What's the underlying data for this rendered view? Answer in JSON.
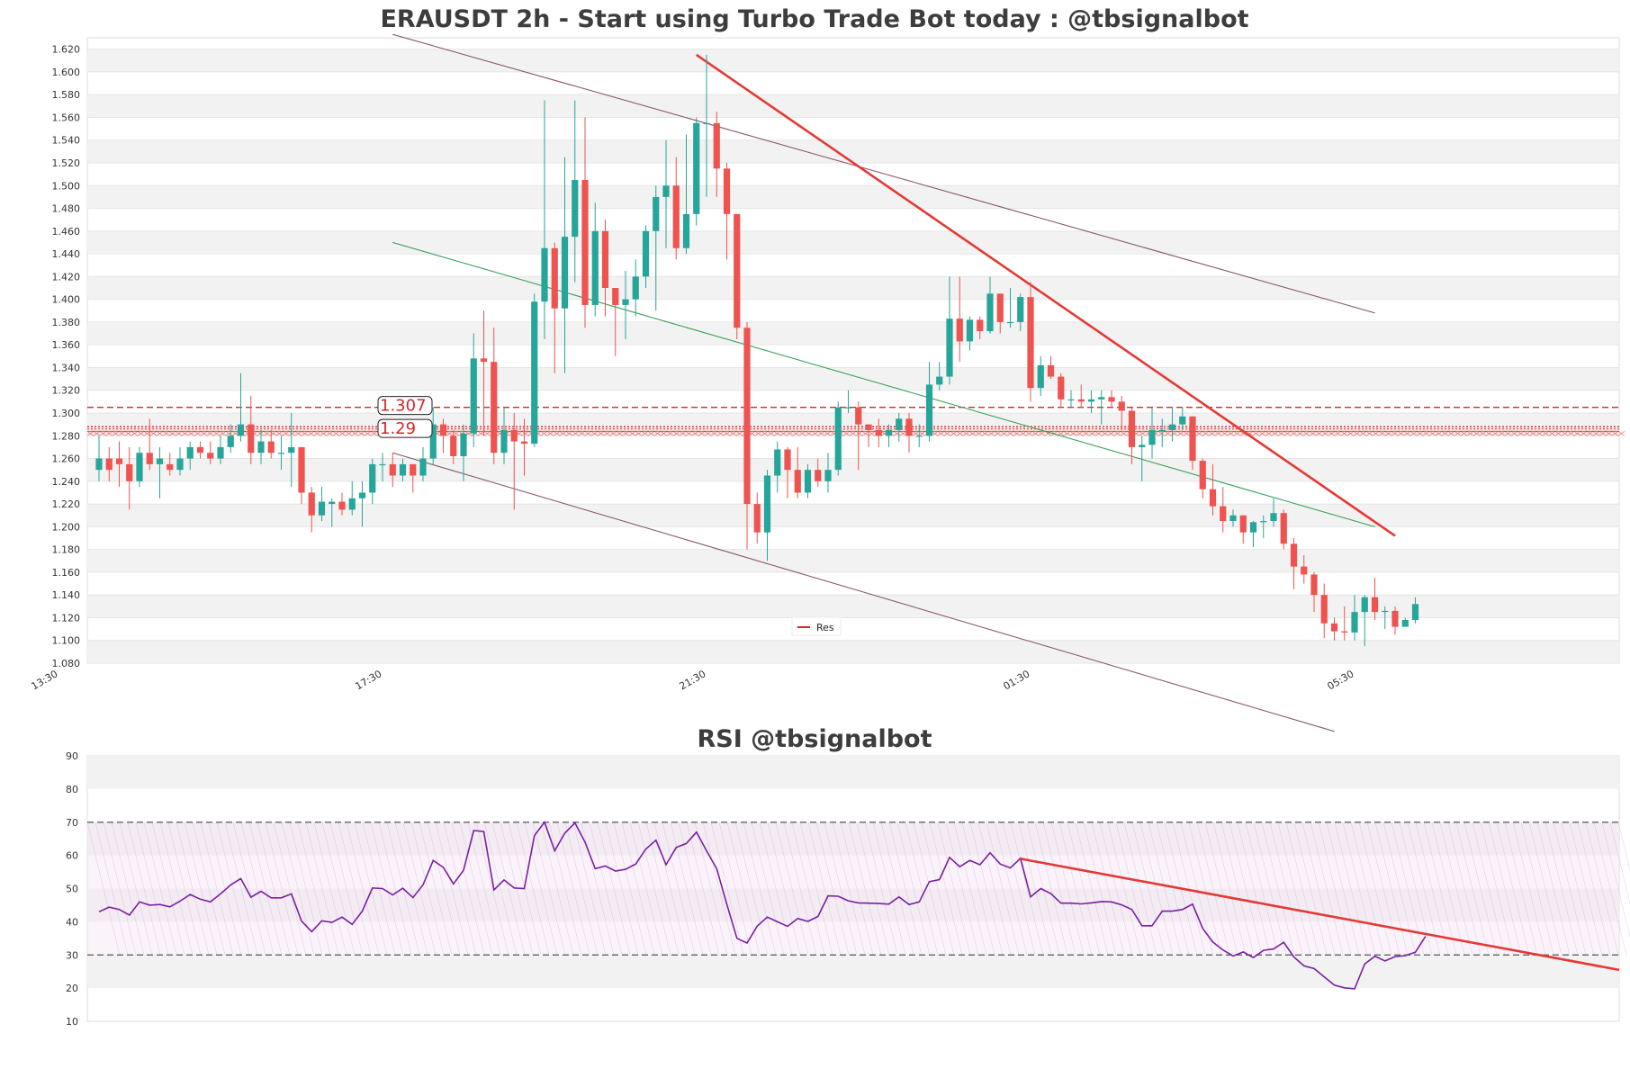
{
  "title": "ERAUSDT 2h - Start using Turbo Trade Bot today : @tbsignalbot",
  "rsi_title": "RSI @tbsignalbot",
  "colors": {
    "up": "#26a69a",
    "down": "#ef5350",
    "resistance": "#d62728",
    "channel": "#8b5a6b",
    "midline": "#3aa35a",
    "rsi": "#7b1fa2",
    "trend": "#e53935"
  },
  "chart_data": [
    {
      "type": "candlestick",
      "ylim": [
        1.08,
        1.63
      ],
      "yticks": [
        "1.080",
        "1.100",
        "1.120",
        "1.140",
        "1.160",
        "1.180",
        "1.200",
        "1.220",
        "1.240",
        "1.260",
        "1.280",
        "1.300",
        "1.320",
        "1.340",
        "1.360",
        "1.380",
        "1.400",
        "1.420",
        "1.440",
        "1.460",
        "1.480",
        "1.500",
        "1.520",
        "1.540",
        "1.560",
        "1.580",
        "1.600",
        "1.620"
      ],
      "xtick_labels": [
        "13:30",
        "17:30",
        "21:30",
        "01:30",
        "05:30"
      ],
      "xtick_index": [
        -4,
        28,
        60,
        92,
        124
      ],
      "level_labels": [
        "1.307",
        "1.29"
      ],
      "levels": [
        1.305,
        1.288,
        1.286,
        1.284,
        1.28
      ],
      "legend": [
        "Res"
      ],
      "candles": [
        [
          1.25,
          1.26,
          1.28,
          1.24
        ],
        [
          1.26,
          1.25,
          1.27,
          1.24
        ],
        [
          1.26,
          1.255,
          1.275,
          1.235
        ],
        [
          1.255,
          1.24,
          1.27,
          1.215
        ],
        [
          1.24,
          1.265,
          1.27,
          1.235
        ],
        [
          1.265,
          1.255,
          1.295,
          1.25
        ],
        [
          1.255,
          1.26,
          1.27,
          1.225
        ],
        [
          1.255,
          1.25,
          1.265,
          1.245
        ],
        [
          1.25,
          1.26,
          1.27,
          1.245
        ],
        [
          1.26,
          1.27,
          1.275,
          1.25
        ],
        [
          1.27,
          1.265,
          1.275,
          1.26
        ],
        [
          1.265,
          1.26,
          1.275,
          1.255
        ],
        [
          1.26,
          1.27,
          1.28,
          1.255
        ],
        [
          1.27,
          1.28,
          1.29,
          1.265
        ],
        [
          1.28,
          1.29,
          1.335,
          1.275
        ],
        [
          1.29,
          1.265,
          1.315,
          1.255
        ],
        [
          1.265,
          1.275,
          1.285,
          1.255
        ],
        [
          1.275,
          1.265,
          1.285,
          1.26
        ],
        [
          1.265,
          1.265,
          1.28,
          1.25
        ],
        [
          1.265,
          1.27,
          1.3,
          1.235
        ],
        [
          1.27,
          1.23,
          1.27,
          1.22
        ],
        [
          1.23,
          1.21,
          1.235,
          1.195
        ],
        [
          1.21,
          1.222,
          1.235,
          1.205
        ],
        [
          1.22,
          1.222,
          1.225,
          1.2
        ],
        [
          1.222,
          1.215,
          1.23,
          1.21
        ],
        [
          1.215,
          1.225,
          1.24,
          1.21
        ],
        [
          1.225,
          1.23,
          1.24,
          1.2
        ],
        [
          1.23,
          1.255,
          1.26,
          1.22
        ],
        [
          1.255,
          1.255,
          1.265,
          1.24
        ],
        [
          1.255,
          1.245,
          1.265,
          1.235
        ],
        [
          1.245,
          1.255,
          1.26,
          1.24
        ],
        [
          1.255,
          1.245,
          1.255,
          1.23
        ],
        [
          1.245,
          1.26,
          1.27,
          1.24
        ],
        [
          1.26,
          1.29,
          1.305,
          1.255
        ],
        [
          1.29,
          1.28,
          1.295,
          1.265
        ],
        [
          1.28,
          1.262,
          1.285,
          1.255
        ],
        [
          1.262,
          1.282,
          1.29,
          1.24
        ],
        [
          1.282,
          1.348,
          1.37,
          1.27
        ],
        [
          1.348,
          1.345,
          1.39,
          1.28
        ],
        [
          1.345,
          1.265,
          1.375,
          1.255
        ],
        [
          1.265,
          1.285,
          1.305,
          1.255
        ],
        [
          1.285,
          1.275,
          1.3,
          1.215
        ],
        [
          1.275,
          1.273,
          1.295,
          1.245
        ],
        [
          1.273,
          1.398,
          1.405,
          1.27
        ],
        [
          1.398,
          1.445,
          1.575,
          1.365
        ],
        [
          1.445,
          1.392,
          1.45,
          1.335
        ],
        [
          1.392,
          1.455,
          1.525,
          1.335
        ],
        [
          1.455,
          1.505,
          1.575,
          1.415
        ],
        [
          1.505,
          1.395,
          1.56,
          1.375
        ],
        [
          1.395,
          1.46,
          1.485,
          1.385
        ],
        [
          1.46,
          1.41,
          1.47,
          1.385
        ],
        [
          1.41,
          1.395,
          1.41,
          1.35
        ],
        [
          1.395,
          1.4,
          1.425,
          1.365
        ],
        [
          1.4,
          1.42,
          1.435,
          1.385
        ],
        [
          1.42,
          1.46,
          1.465,
          1.41
        ],
        [
          1.46,
          1.49,
          1.5,
          1.39
        ],
        [
          1.49,
          1.5,
          1.54,
          1.445
        ],
        [
          1.5,
          1.445,
          1.525,
          1.435
        ],
        [
          1.445,
          1.475,
          1.545,
          1.44
        ],
        [
          1.475,
          1.555,
          1.56,
          1.465
        ],
        [
          1.555,
          1.555,
          1.615,
          1.49
        ],
        [
          1.555,
          1.515,
          1.565,
          1.49
        ],
        [
          1.515,
          1.475,
          1.52,
          1.435
        ],
        [
          1.475,
          1.375,
          1.475,
          1.365
        ],
        [
          1.375,
          1.22,
          1.38,
          1.18
        ],
        [
          1.22,
          1.195,
          1.23,
          1.185
        ],
        [
          1.195,
          1.245,
          1.25,
          1.17
        ],
        [
          1.245,
          1.268,
          1.275,
          1.23
        ],
        [
          1.268,
          1.25,
          1.27,
          1.225
        ],
        [
          1.25,
          1.23,
          1.27,
          1.225
        ],
        [
          1.23,
          1.25,
          1.255,
          1.225
        ],
        [
          1.25,
          1.24,
          1.26,
          1.235
        ],
        [
          1.24,
          1.25,
          1.265,
          1.23
        ],
        [
          1.25,
          1.305,
          1.31,
          1.245
        ],
        [
          1.305,
          1.305,
          1.32,
          1.3
        ],
        [
          1.305,
          1.29,
          1.31,
          1.25
        ],
        [
          1.29,
          1.285,
          1.29,
          1.27
        ],
        [
          1.285,
          1.28,
          1.295,
          1.27
        ],
        [
          1.28,
          1.285,
          1.29,
          1.27
        ],
        [
          1.285,
          1.295,
          1.3,
          1.275
        ],
        [
          1.295,
          1.28,
          1.3,
          1.265
        ],
        [
          1.28,
          1.28,
          1.29,
          1.27
        ],
        [
          1.28,
          1.325,
          1.345,
          1.275
        ],
        [
          1.325,
          1.332,
          1.345,
          1.32
        ],
        [
          1.332,
          1.383,
          1.42,
          1.325
        ],
        [
          1.383,
          1.363,
          1.42,
          1.345
        ],
        [
          1.363,
          1.382,
          1.385,
          1.355
        ],
        [
          1.382,
          1.372,
          1.385,
          1.365
        ],
        [
          1.372,
          1.405,
          1.42,
          1.37
        ],
        [
          1.405,
          1.38,
          1.405,
          1.37
        ],
        [
          1.38,
          1.38,
          1.41,
          1.375
        ],
        [
          1.38,
          1.402,
          1.405,
          1.372
        ],
        [
          1.402,
          1.322,
          1.415,
          1.31
        ],
        [
          1.322,
          1.342,
          1.35,
          1.315
        ],
        [
          1.342,
          1.332,
          1.35,
          1.33
        ],
        [
          1.332,
          1.312,
          1.335,
          1.305
        ],
        [
          1.312,
          1.312,
          1.32,
          1.305
        ],
        [
          1.312,
          1.31,
          1.325,
          1.305
        ],
        [
          1.31,
          1.312,
          1.32,
          1.3
        ],
        [
          1.312,
          1.314,
          1.32,
          1.29
        ],
        [
          1.314,
          1.31,
          1.32,
          1.305
        ],
        [
          1.31,
          1.302,
          1.315,
          1.285
        ],
        [
          1.302,
          1.27,
          1.305,
          1.255
        ],
        [
          1.27,
          1.272,
          1.28,
          1.24
        ],
        [
          1.272,
          1.285,
          1.305,
          1.26
        ],
        [
          1.285,
          1.285,
          1.295,
          1.27
        ],
        [
          1.285,
          1.29,
          1.305,
          1.275
        ],
        [
          1.29,
          1.297,
          1.305,
          1.285
        ],
        [
          1.297,
          1.258,
          1.297,
          1.25
        ],
        [
          1.258,
          1.233,
          1.26,
          1.225
        ],
        [
          1.233,
          1.218,
          1.255,
          1.21
        ],
        [
          1.218,
          1.205,
          1.235,
          1.195
        ],
        [
          1.205,
          1.21,
          1.215,
          1.2
        ],
        [
          1.21,
          1.195,
          1.21,
          1.185
        ],
        [
          1.195,
          1.204,
          1.205,
          1.182
        ],
        [
          1.204,
          1.205,
          1.21,
          1.19
        ],
        [
          1.205,
          1.212,
          1.225,
          1.2
        ],
        [
          1.212,
          1.185,
          1.215,
          1.18
        ],
        [
          1.185,
          1.165,
          1.19,
          1.145
        ],
        [
          1.165,
          1.158,
          1.175,
          1.15
        ],
        [
          1.158,
          1.14,
          1.16,
          1.125
        ],
        [
          1.14,
          1.115,
          1.15,
          1.102
        ],
        [
          1.115,
          1.108,
          1.12,
          1.1
        ],
        [
          1.108,
          1.107,
          1.13,
          1.1
        ],
        [
          1.107,
          1.125,
          1.14,
          1.1
        ],
        [
          1.125,
          1.138,
          1.14,
          1.095
        ],
        [
          1.138,
          1.125,
          1.155,
          1.118
        ],
        [
          1.125,
          1.126,
          1.13,
          1.11
        ],
        [
          1.126,
          1.112,
          1.13,
          1.105
        ],
        [
          1.112,
          1.118,
          1.12,
          1.112
        ],
        [
          1.118,
          1.132,
          1.138,
          1.115
        ]
      ]
    },
    {
      "type": "line",
      "ylim": [
        10,
        90
      ],
      "yticks": [
        "10",
        "20",
        "30",
        "40",
        "50",
        "60",
        "70",
        "80",
        "90"
      ],
      "bands": [
        30,
        70
      ],
      "values": [
        43,
        44.4,
        43.7,
        42,
        46,
        45,
        45.2,
        44.5,
        46.2,
        48.2,
        46.8,
        46,
        48.4,
        51.1,
        53,
        47.4,
        49.2,
        47.2,
        47.2,
        48.4,
        40.2,
        37,
        40.3,
        39.8,
        41.4,
        39.2,
        43.2,
        50.2,
        50,
        48.1,
        50.1,
        47.3,
        51.1,
        58.5,
        56.4,
        51.4,
        55.5,
        67.5,
        67.2,
        49.6,
        52.6,
        50.2,
        50,
        66,
        70,
        61.4,
        66.7,
        69.8,
        64,
        56,
        56.8,
        55.3,
        55.8,
        57.4,
        61.9,
        64.6,
        57.2,
        62.4,
        63.6,
        67,
        61.4,
        56,
        45.3,
        35,
        33.6,
        38.7,
        41.4,
        40,
        38.6,
        41,
        40.1,
        41.6,
        47.8,
        47.7,
        46.3,
        45.7,
        45.6,
        45.5,
        45.3,
        47.5,
        45.2,
        46,
        52.1,
        52.7,
        59.4,
        56.6,
        58.5,
        57.2,
        60.8,
        57.4,
        56.2,
        59.1,
        47.5,
        50,
        48.5,
        45.6,
        45.6,
        45.4,
        45.7,
        46.1,
        46,
        45.1,
        43.7,
        38.8,
        38.8,
        43.2,
        43.2,
        43.7,
        45.3,
        38,
        33.9,
        31.5,
        29.7,
        30.9,
        29.2,
        31.4,
        31.8,
        33.8,
        29.4,
        26.7,
        25.9,
        23.4,
        20.9,
        20.1,
        19.8,
        27.3,
        29.6,
        28.2,
        29.5,
        29.8,
        30.8,
        35.6
      ]
    }
  ]
}
